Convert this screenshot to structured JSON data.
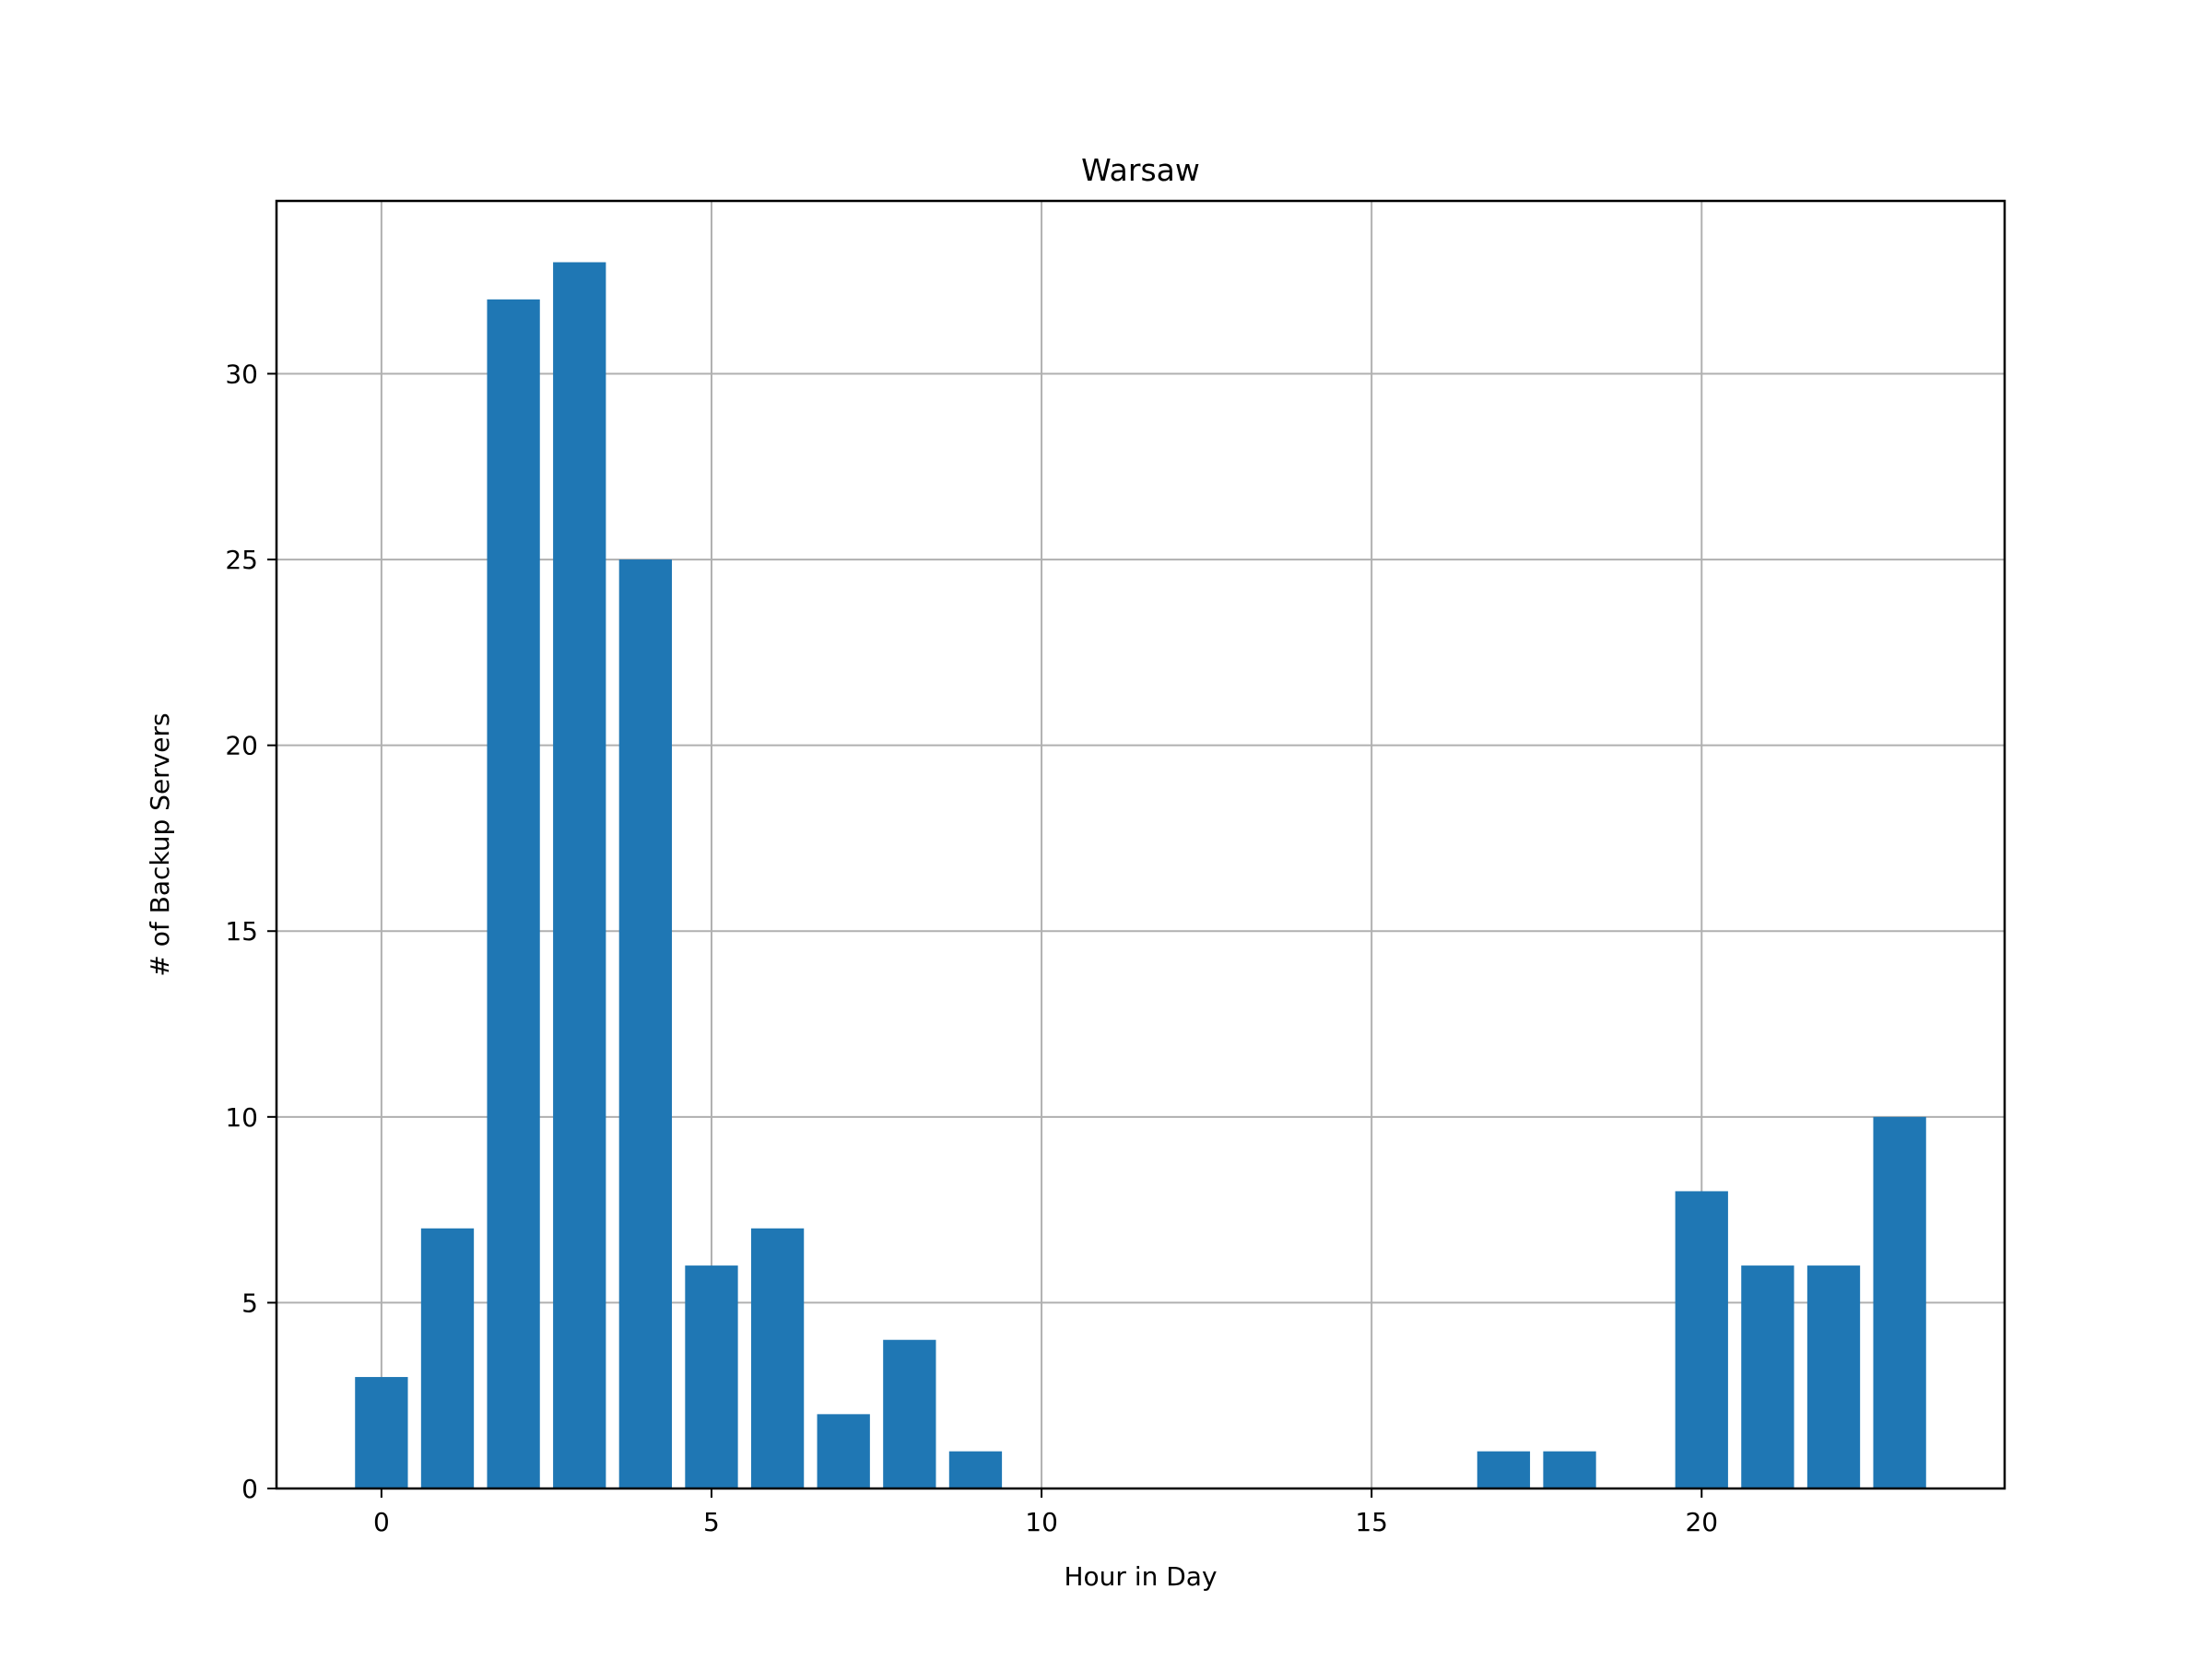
{
  "chart_data": {
    "type": "bar",
    "title": "Warsaw",
    "xlabel": "Hour in Day",
    "ylabel": "# of Backup Servers",
    "x": [
      0,
      1,
      2,
      3,
      4,
      5,
      6,
      7,
      8,
      9,
      10,
      11,
      12,
      13,
      14,
      15,
      16,
      17,
      18,
      19,
      20,
      21,
      22,
      23
    ],
    "values": [
      3,
      7,
      32,
      33,
      25,
      6,
      7,
      2,
      4,
      1,
      0,
      0,
      0,
      0,
      0,
      0,
      0,
      1,
      1,
      0,
      8,
      6,
      6,
      10
    ],
    "xticks": [
      0,
      5,
      10,
      15,
      20
    ],
    "yticks": [
      0,
      5,
      10,
      15,
      20,
      25,
      30
    ],
    "xlim": [
      -1.59,
      24.59
    ],
    "ylim": [
      0,
      34.65
    ],
    "grid": true,
    "bar_color": "#1f77b4",
    "grid_color": "#b0b0b0"
  }
}
